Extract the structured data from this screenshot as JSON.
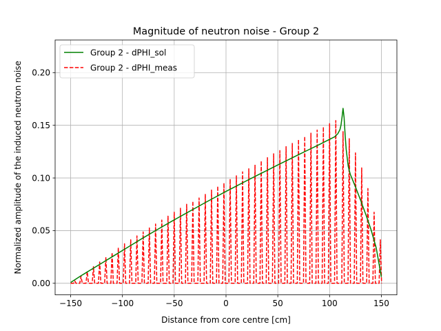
{
  "chart_data": {
    "type": "line",
    "title": "Magnitude of neutron noise - Group 2",
    "xlabel": "Distance from core centre [cm]",
    "ylabel": "Normalized amplitude of the induced neutron noise",
    "xlim": [
      -165,
      165
    ],
    "ylim": [
      -0.011,
      0.231
    ],
    "x_ticks": [
      -150,
      -100,
      -50,
      0,
      50,
      100,
      150
    ],
    "x_tick_labels": [
      "−150",
      "−100",
      "−50",
      "0",
      "50",
      "100",
      "150"
    ],
    "y_ticks": [
      0.0,
      0.05,
      0.1,
      0.15,
      0.2
    ],
    "y_tick_labels": [
      "0.00",
      "0.05",
      "0.10",
      "0.15",
      "0.20"
    ],
    "grid": true,
    "legend_position": "top-left",
    "series": [
      {
        "name": "Group 2 - dPHI_sol",
        "color": "#008000",
        "line_style": "solid",
        "x": [
          -150,
          -140,
          -130,
          -120,
          -110,
          -100,
          -90,
          -80,
          -70,
          -60,
          -50,
          -40,
          -30,
          -20,
          -10,
          0,
          10,
          20,
          30,
          40,
          50,
          60,
          70,
          80,
          90,
          100,
          105,
          108,
          110,
          111,
          112,
          113,
          114,
          115,
          116,
          118,
          120,
          125,
          130,
          135,
          140,
          145,
          150
        ],
        "y": [
          0.001,
          0.0095,
          0.0175,
          0.0255,
          0.0335,
          0.0415,
          0.0495,
          0.0575,
          0.0652,
          0.0728,
          0.0803,
          0.0876,
          0.0949,
          0.1022,
          0.1093,
          0.1163,
          0.1231,
          0.1299,
          0.1366,
          0.1432,
          0.1498,
          0.1563,
          0.1628,
          0.1692,
          0.1756,
          0.1822,
          0.1855,
          0.1895,
          0.1945,
          0.2,
          0.21,
          0.2215,
          0.21,
          0.188,
          0.17,
          0.148,
          0.138,
          0.122,
          0.105,
          0.087,
          0.068,
          0.045,
          0.008
        ],
        "y_display_scale": 0.75
      },
      {
        "name": "Group 2 - dPHI_meas",
        "color": "#ff0000",
        "line_style": "dashed",
        "pattern": "oscillating spikes from 0 up to near the dPHI_sol envelope",
        "peak_x": [
          -146,
          -140,
          -134,
          -128,
          -122,
          -116,
          -110,
          -104,
          -98,
          -92,
          -86,
          -80,
          -74,
          -68,
          -62,
          -56,
          -50,
          -44,
          -38,
          -32,
          -26,
          -20,
          -14,
          -8,
          -2,
          4,
          10,
          16,
          22,
          28,
          34,
          40,
          46,
          52,
          58,
          64,
          70,
          76,
          82,
          88,
          94,
          100,
          106,
          113,
          119,
          125,
          131,
          137,
          143,
          149
        ],
        "peak_y": [
          0.003,
          0.009,
          0.015,
          0.021,
          0.027,
          0.033,
          0.039,
          0.045,
          0.05,
          0.055,
          0.06,
          0.065,
          0.07,
          0.075,
          0.08,
          0.085,
          0.09,
          0.095,
          0.1,
          0.104,
          0.108,
          0.113,
          0.118,
          0.123,
          0.127,
          0.132,
          0.136,
          0.141,
          0.145,
          0.15,
          0.155,
          0.159,
          0.164,
          0.168,
          0.173,
          0.177,
          0.182,
          0.186,
          0.19,
          0.194,
          0.198,
          0.202,
          0.206,
          0.192,
          0.183,
          0.165,
          0.146,
          0.12,
          0.09,
          0.055
        ],
        "y_display_scale": 0.75
      }
    ]
  }
}
